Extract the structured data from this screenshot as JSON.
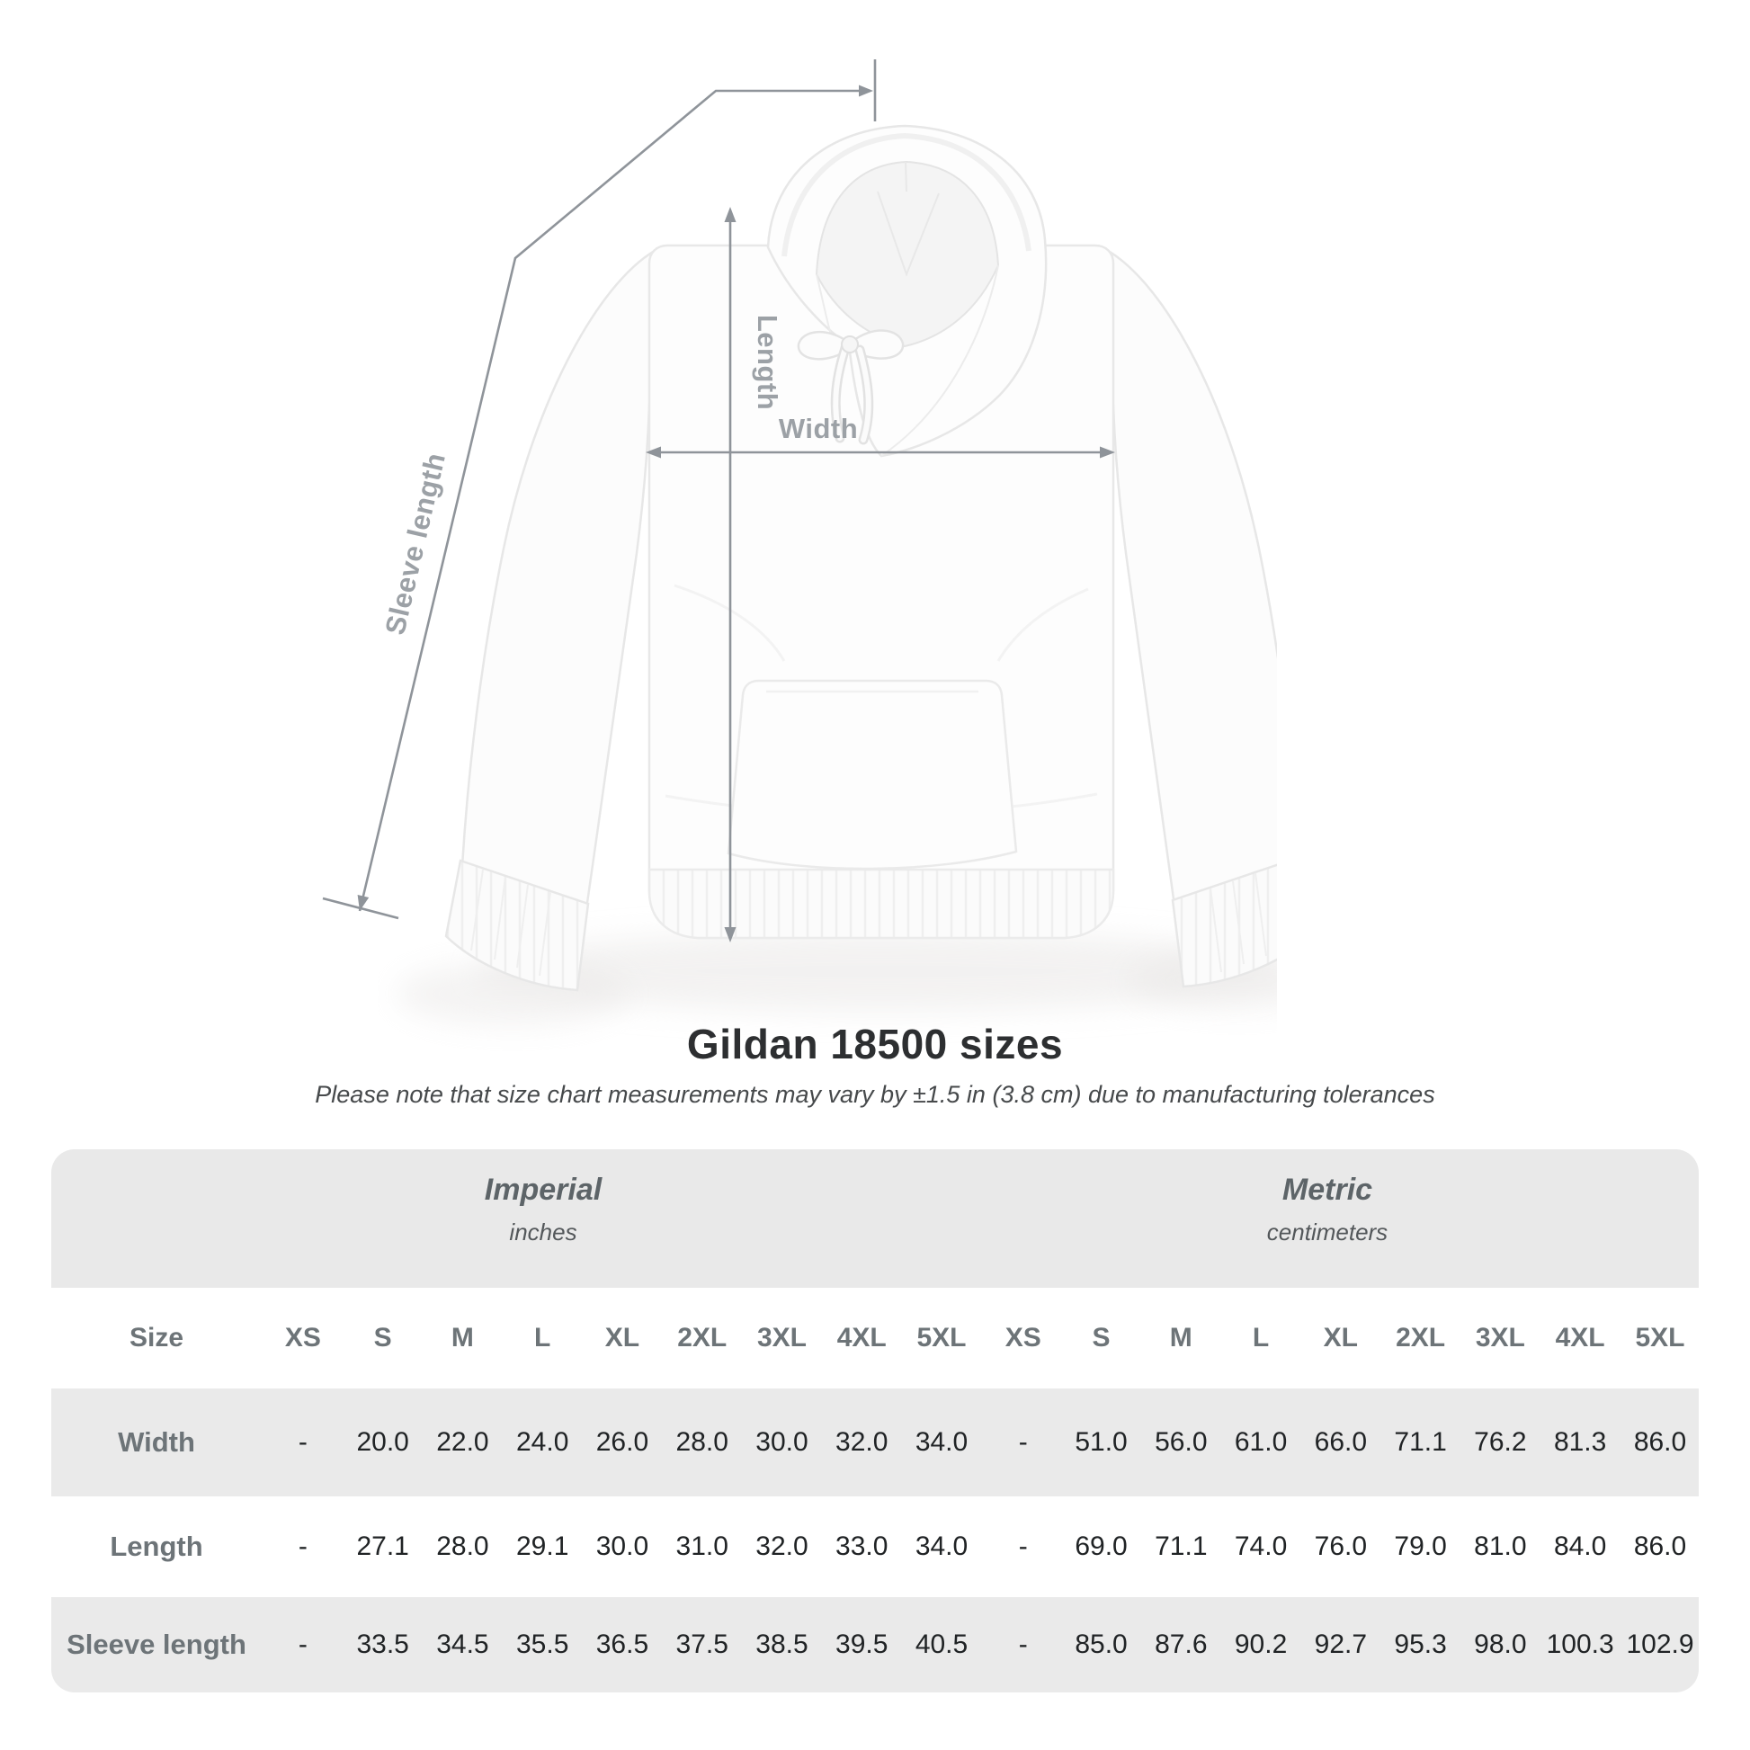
{
  "diagram": {
    "length_label": "Length",
    "width_label": "Width",
    "sleeve_label": "Sleeve length"
  },
  "heading": {
    "title": "Gildan 18500 sizes",
    "subtitle": "Please note that size chart measurements may vary by ±1.5 in (3.8 cm) due to manufacturing tolerances"
  },
  "table": {
    "size_col_header": "Size",
    "sections": [
      {
        "name": "Imperial",
        "unit": "inches"
      },
      {
        "name": "Metric",
        "unit": "centimeters"
      }
    ],
    "sizes": [
      "XS",
      "S",
      "M",
      "L",
      "XL",
      "2XL",
      "3XL",
      "4XL",
      "5XL"
    ],
    "rows": [
      {
        "label": "Width",
        "imperial": [
          "-",
          "20.0",
          "22.0",
          "24.0",
          "26.0",
          "28.0",
          "30.0",
          "32.0",
          "34.0"
        ],
        "metric": [
          "-",
          "51.0",
          "56.0",
          "61.0",
          "66.0",
          "71.1",
          "76.2",
          "81.3",
          "86.0"
        ]
      },
      {
        "label": "Length",
        "imperial": [
          "-",
          "27.1",
          "28.0",
          "29.1",
          "30.0",
          "31.0",
          "32.0",
          "33.0",
          "34.0"
        ],
        "metric": [
          "-",
          "69.0",
          "71.1",
          "74.0",
          "76.0",
          "79.0",
          "81.0",
          "84.0",
          "86.0"
        ]
      },
      {
        "label": "Sleeve length",
        "imperial": [
          "-",
          "33.5",
          "34.5",
          "35.5",
          "36.5",
          "37.5",
          "38.5",
          "39.5",
          "40.5"
        ],
        "metric": [
          "-",
          "85.0",
          "87.6",
          "90.2",
          "92.7",
          "95.3",
          "98.0",
          "100.3",
          "102.9"
        ]
      }
    ]
  },
  "colors": {
    "measure_line": "#8f949a",
    "measure_label": "#9ca1a6",
    "band_bg": "#e9e9e9",
    "row_alt_bg": "#eaeaea",
    "header_text": "#6d7478",
    "value_text": "#202325",
    "title_text": "#2d2f31",
    "subtitle_text": "#46494b"
  },
  "chart_data": {
    "type": "table",
    "title": "Gildan 18500 sizes",
    "note": "Measurements may vary by ±1.5 in (3.8 cm) due to manufacturing tolerances",
    "sections": [
      "Imperial (inches)",
      "Metric (centimeters)"
    ],
    "sizes": [
      "XS",
      "S",
      "M",
      "L",
      "XL",
      "2XL",
      "3XL",
      "4XL",
      "5XL"
    ],
    "rows": [
      {
        "measurement": "Width",
        "imperial_in": [
          null,
          20.0,
          22.0,
          24.0,
          26.0,
          28.0,
          30.0,
          32.0,
          34.0
        ],
        "metric_cm": [
          null,
          51.0,
          56.0,
          61.0,
          66.0,
          71.1,
          76.2,
          81.3,
          86.0
        ]
      },
      {
        "measurement": "Length",
        "imperial_in": [
          null,
          27.1,
          28.0,
          29.1,
          30.0,
          31.0,
          32.0,
          33.0,
          34.0
        ],
        "metric_cm": [
          null,
          69.0,
          71.1,
          74.0,
          76.0,
          79.0,
          81.0,
          84.0,
          86.0
        ]
      },
      {
        "measurement": "Sleeve length",
        "imperial_in": [
          null,
          33.5,
          34.5,
          35.5,
          36.5,
          37.5,
          38.5,
          39.5,
          40.5
        ],
        "metric_cm": [
          null,
          85.0,
          87.6,
          90.2,
          92.7,
          95.3,
          98.0,
          100.3,
          102.9
        ]
      }
    ]
  }
}
